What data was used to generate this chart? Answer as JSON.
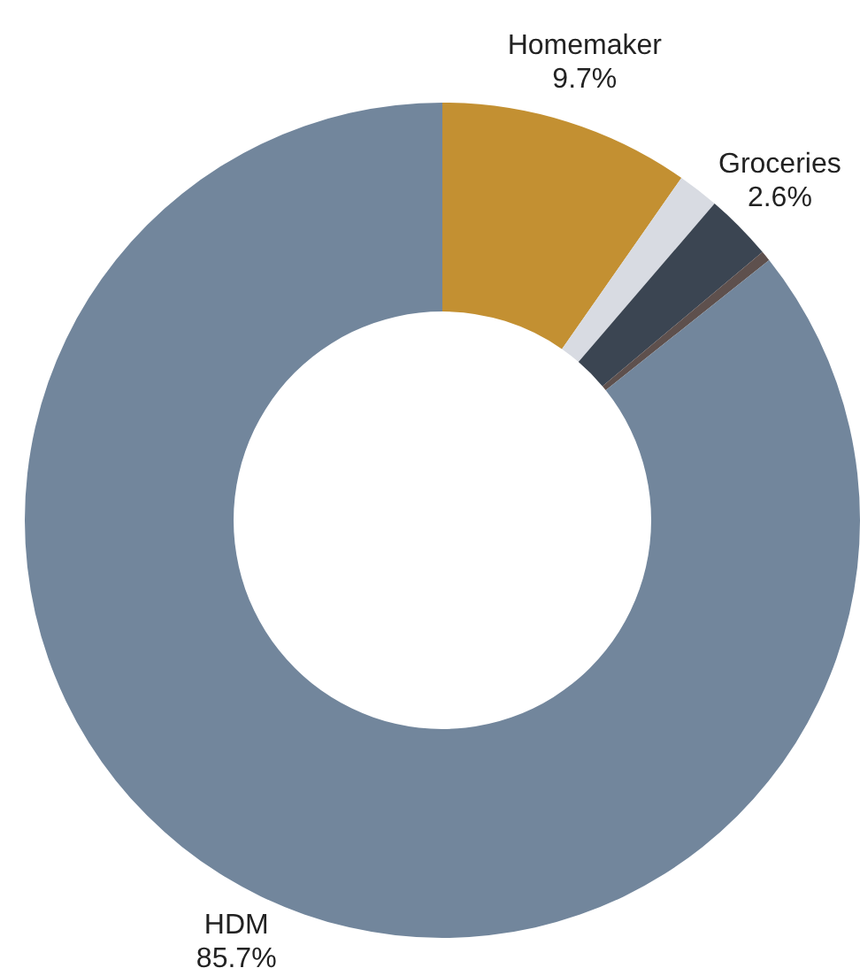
{
  "chart_data": {
    "type": "donut",
    "categories": [
      "Homemaker",
      null,
      "Groceries",
      null,
      "HDM"
    ],
    "values": [
      9.7,
      1.6,
      2.6,
      0.4,
      85.7
    ],
    "value_labels": [
      "9.7%",
      null,
      "2.6%",
      null,
      "85.7%"
    ],
    "colors": [
      "#c39032",
      "#d8dbe2",
      "#3b4552",
      "#5e504d",
      "#72869c"
    ],
    "legend": false
  }
}
